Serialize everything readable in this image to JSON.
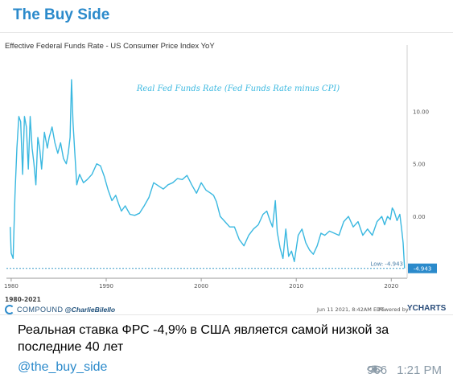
{
  "post": {
    "channel_name": "The Buy Side",
    "text_line1": "Реальная ставка ФРС -4,9% в США является самой низкой за",
    "text_line2": "последние 40 лет",
    "hashtag": "@the_buy_side",
    "views": "966",
    "time": "1:21 PM",
    "view_icon": "eye-icon"
  },
  "chart": {
    "header": "Effective Federal Funds Rate - US Consumer Price Index YoY",
    "annotation": "Real Fed Funds Rate (Fed Funds Rate minus CPI)",
    "period": "1980-2021",
    "brand_name": "COMPOUND",
    "brand_handle": "@CharlieBilello",
    "timestamp": "Jun 11 2021, 8:42AM EDT.",
    "powered_by": "Powered by",
    "ycharts": "YCHARTS",
    "low_label": "Low: -4.943",
    "last_value_label": "-4.943",
    "line_color": "#3ab8e0",
    "low_line_color": "#3a9ac8"
  },
  "chart_data": {
    "type": "line",
    "title": "Effective Federal Funds Rate - US Consumer Price Index YoY",
    "series": [
      {
        "name": "Real Fed Funds Rate (Fed Funds Rate minus CPI)",
        "x": [
          1979.9,
          1980.0,
          1980.2,
          1980.4,
          1980.6,
          1980.8,
          1981.0,
          1981.2,
          1981.4,
          1981.6,
          1981.8,
          1982.0,
          1982.2,
          1982.4,
          1982.6,
          1982.8,
          1983.0,
          1983.2,
          1983.5,
          1983.8,
          1984.0,
          1984.3,
          1984.6,
          1984.9,
          1985.2,
          1985.5,
          1985.8,
          1986.0,
          1986.2,
          1986.35,
          1986.5,
          1986.7,
          1986.9,
          1987.2,
          1987.6,
          1988.0,
          1988.5,
          1989.0,
          1989.4,
          1989.8,
          1990.2,
          1990.6,
          1991.0,
          1991.3,
          1991.6,
          1992.0,
          1992.5,
          1993.0,
          1993.5,
          1994.0,
          1994.5,
          1995.0,
          1995.5,
          1996.0,
          1996.5,
          1997.0,
          1997.5,
          1998.0,
          1998.5,
          1999.0,
          1999.5,
          2000.0,
          2000.5,
          2001.0,
          2001.3,
          2001.6,
          2002.0,
          2002.5,
          2003.0,
          2003.5,
          2004.0,
          2004.5,
          2005.0,
          2005.5,
          2006.0,
          2006.5,
          2006.9,
          2007.2,
          2007.5,
          2007.8,
          2008.0,
          2008.3,
          2008.6,
          2008.9,
          2009.2,
          2009.5,
          2009.8,
          2010.2,
          2010.6,
          2011.0,
          2011.4,
          2011.8,
          2012.2,
          2012.6,
          2013.0,
          2013.5,
          2014.0,
          2014.5,
          2015.0,
          2015.5,
          2016.0,
          2016.5,
          2017.0,
          2017.5,
          2018.0,
          2018.5,
          2019.0,
          2019.3,
          2019.6,
          2019.9,
          2020.1,
          2020.3,
          2020.6,
          2020.9,
          2021.1,
          2021.25,
          2021.4
        ],
        "y": [
          -1.0,
          -3.5,
          -4.0,
          2.0,
          6.5,
          9.5,
          9.0,
          4.0,
          9.5,
          8.5,
          4.5,
          9.5,
          6.5,
          5.0,
          3.0,
          7.5,
          6.5,
          4.5,
          8.0,
          6.5,
          7.5,
          8.5,
          7.0,
          6.0,
          7.0,
          5.5,
          5.0,
          6.0,
          7.5,
          13.0,
          9.0,
          6.0,
          3.0,
          4.0,
          3.2,
          3.5,
          4.0,
          5.0,
          4.8,
          3.8,
          2.5,
          1.5,
          2.0,
          1.2,
          0.5,
          1.0,
          0.2,
          0.1,
          0.3,
          1.0,
          1.8,
          3.2,
          2.9,
          2.6,
          3.0,
          3.2,
          3.6,
          3.5,
          3.9,
          3.0,
          2.2,
          3.2,
          2.5,
          2.2,
          2.0,
          1.4,
          0.0,
          -0.5,
          -1.0,
          -1.0,
          -2.2,
          -2.8,
          -1.8,
          -1.2,
          -0.8,
          0.2,
          0.5,
          -0.3,
          -1.0,
          1.5,
          -1.5,
          -3.0,
          -4.0,
          -1.2,
          -3.8,
          -3.3,
          -4.3,
          -1.8,
          -1.2,
          -2.5,
          -3.2,
          -3.6,
          -2.8,
          -1.6,
          -1.8,
          -1.4,
          -1.6,
          -1.8,
          -0.5,
          0.0,
          -1.0,
          -0.5,
          -1.8,
          -1.2,
          -1.8,
          -0.5,
          0.0,
          -0.8,
          0.0,
          -0.3,
          0.8,
          0.5,
          -0.4,
          0.2,
          -1.3,
          -2.5,
          -4.943
        ]
      }
    ],
    "xlim": [
      1979.5,
      2021.5
    ],
    "ylim": [
      -5.5,
      14.0
    ],
    "xticks": [
      1980,
      1990,
      2000,
      2010,
      2020
    ],
    "xtick_labels": [
      "1980",
      "1990",
      "2000",
      "2010",
      "2020"
    ],
    "yticks": [
      0,
      5,
      10
    ],
    "ytick_labels": [
      "0.00",
      "5.00",
      "10.00"
    ],
    "reference_line": -4.943,
    "grid": false,
    "legend": "none"
  }
}
